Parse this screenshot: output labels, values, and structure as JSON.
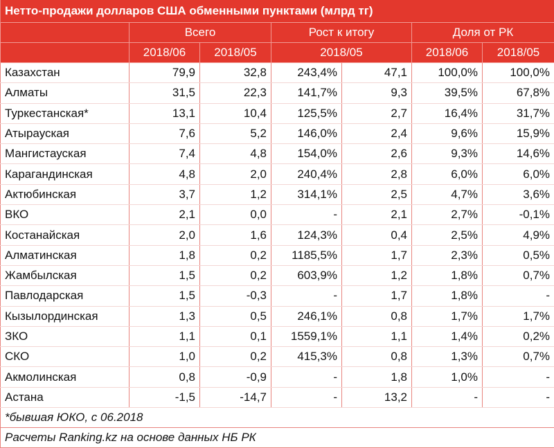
{
  "title": "Нетто-продажи долларов США обменными пунктами (млрд тг)",
  "header": {
    "groups": [
      "Всего",
      "Рост к итогу",
      "Доля от РК"
    ],
    "periods": [
      "2018/06",
      "2018/05",
      "2018/05",
      "2018/06",
      "2018/05"
    ]
  },
  "table": {
    "rows": [
      [
        "Казахстан",
        "79,9",
        "32,8",
        "243,4%",
        "47,1",
        "100,0%",
        "100,0%"
      ],
      [
        "Алматы",
        "31,5",
        "22,3",
        "141,7%",
        "9,3",
        "39,5%",
        "67,8%"
      ],
      [
        "Туркестанская*",
        "13,1",
        "10,4",
        "125,5%",
        "2,7",
        "16,4%",
        "31,7%"
      ],
      [
        "Атырауская",
        "7,6",
        "5,2",
        "146,0%",
        "2,4",
        "9,6%",
        "15,9%"
      ],
      [
        "Мангистауская",
        "7,4",
        "4,8",
        "154,0%",
        "2,6",
        "9,3%",
        "14,6%"
      ],
      [
        "Карагандинская",
        "4,8",
        "2,0",
        "240,4%",
        "2,8",
        "6,0%",
        "6,0%"
      ],
      [
        "Актюбинская",
        "3,7",
        "1,2",
        "314,1%",
        "2,5",
        "4,7%",
        "3,6%"
      ],
      [
        "ВКО",
        "2,1",
        "0,0",
        "-",
        "2,1",
        "2,7%",
        "-0,1%"
      ],
      [
        "Костанайская",
        "2,0",
        "1,6",
        "124,3%",
        "0,4",
        "2,5%",
        "4,9%"
      ],
      [
        "Алматинская",
        "1,8",
        "0,2",
        "1185,5%",
        "1,7",
        "2,3%",
        "0,5%"
      ],
      [
        "Жамбылская",
        "1,5",
        "0,2",
        "603,9%",
        "1,2",
        "1,8%",
        "0,7%"
      ],
      [
        "Павлодарская",
        "1,5",
        "-0,3",
        "-",
        "1,7",
        "1,8%",
        "-"
      ],
      [
        "Кызылординская",
        "1,3",
        "0,5",
        "246,1%",
        "0,8",
        "1,7%",
        "1,7%"
      ],
      [
        "ЗКО",
        "1,1",
        "0,1",
        "1559,1%",
        "1,1",
        "1,4%",
        "0,2%"
      ],
      [
        "СКО",
        "1,0",
        "0,2",
        "415,3%",
        "0,8",
        "1,3%",
        "0,7%"
      ],
      [
        "Акмолинская",
        "0,8",
        "-0,9",
        "-",
        "1,8",
        "1,0%",
        "-"
      ],
      [
        "Астана",
        "-1,5",
        "-14,7",
        "-",
        "13,2",
        "-",
        "-"
      ]
    ]
  },
  "footnotes": [
    "*бывшая ЮКО, с 06.2018",
    "Расчеты Ranking.kz на основе данных НБ РК"
  ]
}
